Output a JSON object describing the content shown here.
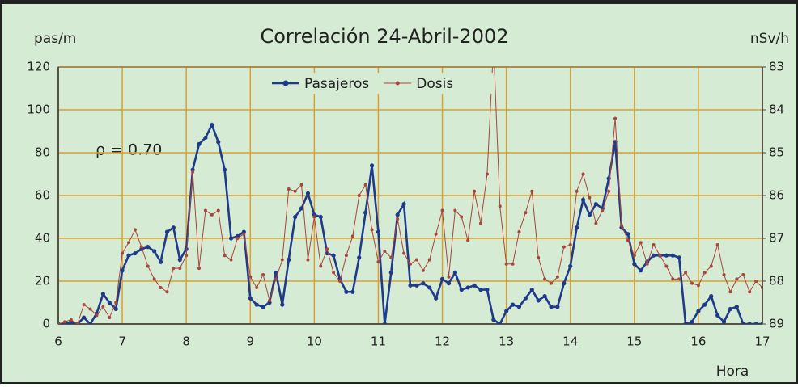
{
  "chart_data": {
    "type": "line",
    "title": "Correlación 24-Abril-2002",
    "y_label": "pas/m",
    "y2_label": "nSv/h",
    "x_label": "Hora",
    "annotation": "ρ = 0.70",
    "x": [
      6,
      6.1,
      6.2,
      6.3,
      6.4,
      6.5,
      6.6,
      6.7,
      6.8,
      6.9,
      7,
      7.1,
      7.2,
      7.3,
      7.4,
      7.5,
      7.6,
      7.7,
      7.8,
      7.9,
      8,
      8.1,
      8.2,
      8.3,
      8.4,
      8.5,
      8.6,
      8.7,
      8.8,
      8.9,
      9,
      9.1,
      9.2,
      9.3,
      9.4,
      9.5,
      9.6,
      9.7,
      9.8,
      9.9,
      10,
      10.1,
      10.2,
      10.3,
      10.4,
      10.5,
      10.6,
      10.7,
      10.8,
      10.9,
      11,
      11.1,
      11.2,
      11.3,
      11.4,
      11.5,
      11.6,
      11.7,
      11.8,
      11.9,
      12,
      12.1,
      12.2,
      12.3,
      12.4,
      12.5,
      12.6,
      12.7,
      12.8,
      12.9,
      13,
      13.1,
      13.2,
      13.3,
      13.4,
      13.5,
      13.6,
      13.7,
      13.8,
      13.9,
      14,
      14.1,
      14.2,
      14.3,
      14.4,
      14.5,
      14.6,
      14.7,
      14.8,
      14.9,
      15,
      15.1,
      15.2,
      15.3,
      15.4,
      15.5,
      15.6,
      15.7,
      15.8,
      15.9,
      16,
      16.1,
      16.2,
      16.3,
      16.4,
      16.5,
      16.6,
      16.7,
      16.8,
      16.9,
      17
    ],
    "series": [
      {
        "name": "Pasajeros",
        "color": "#1f3a8a",
        "axis": "y",
        "values": [
          0,
          0,
          1,
          0,
          3,
          0,
          5,
          14,
          10,
          7,
          25,
          32,
          33,
          35,
          36,
          34,
          29,
          43,
          45,
          30,
          35,
          72,
          84,
          87,
          93,
          85,
          72,
          40,
          41,
          43,
          12,
          9,
          8,
          10,
          24,
          9,
          30,
          50,
          54,
          61,
          51,
          50,
          33,
          32,
          21,
          15,
          15,
          31,
          52,
          74,
          43,
          0,
          24,
          51,
          56,
          18,
          18,
          19,
          17,
          12,
          21,
          19,
          24,
          16,
          17,
          18,
          16,
          16,
          2,
          0,
          6,
          9,
          8,
          12,
          16,
          11,
          13,
          8,
          8,
          19,
          27,
          45,
          58,
          51,
          56,
          54,
          68,
          85,
          45,
          42,
          28,
          25,
          29,
          32,
          32,
          32,
          32,
          31,
          0,
          1,
          6,
          9,
          13,
          4,
          1,
          7,
          8,
          0,
          0,
          0,
          0
        ]
      },
      {
        "name": "Dosis",
        "color": "#a8453c",
        "axis": "y2",
        "values": [
          89,
          88.95,
          88.9,
          89,
          88.55,
          88.65,
          88.8,
          88.6,
          88.85,
          88.5,
          87.35,
          87.1,
          86.8,
          87.2,
          87.65,
          87.95,
          88.15,
          88.25,
          87.7,
          87.7,
          87.4,
          85.45,
          87.7,
          86.35,
          86.45,
          86.35,
          87.4,
          87.5,
          87,
          86.9,
          87.9,
          88.15,
          87.85,
          88.45,
          87.95,
          87.5,
          85.85,
          85.9,
          85.75,
          87.5,
          86.5,
          87.65,
          87.25,
          87.8,
          88,
          87.4,
          86.95,
          86,
          85.75,
          86.8,
          87.55,
          87.3,
          87.45,
          86.55,
          87.35,
          87.6,
          87.5,
          87.75,
          87.5,
          86.9,
          86.35,
          87.9,
          86.35,
          86.5,
          87.05,
          85.9,
          86.65,
          85.5,
          82.5,
          86.25,
          87.6,
          87.6,
          86.85,
          86.4,
          85.9,
          87.45,
          87.95,
          88.05,
          87.9,
          87.2,
          87.15,
          85.9,
          85.5,
          86.05,
          86.65,
          86.35,
          85.9,
          84.2,
          86.7,
          87.05,
          87.4,
          87.1,
          87.6,
          87.15,
          87.4,
          87.65,
          87.95,
          87.95,
          87.8,
          88.05,
          88.1,
          87.8,
          87.65,
          87.15,
          87.85,
          88.25,
          87.95,
          87.85,
          88.25,
          88,
          88.15
        ]
      }
    ],
    "xlim": [
      6,
      17
    ],
    "xticks": [
      6,
      7,
      8,
      9,
      10,
      11,
      12,
      13,
      14,
      15,
      16,
      17
    ],
    "ylim": [
      0,
      120
    ],
    "yticks": [
      0,
      20,
      40,
      60,
      80,
      100,
      120
    ],
    "y2lim": [
      89,
      83
    ],
    "y2ticks": [
      83,
      84,
      85,
      86,
      87,
      88,
      89
    ],
    "grid": true,
    "grid_color": "#d9a030",
    "background": "#d6ebd3"
  }
}
